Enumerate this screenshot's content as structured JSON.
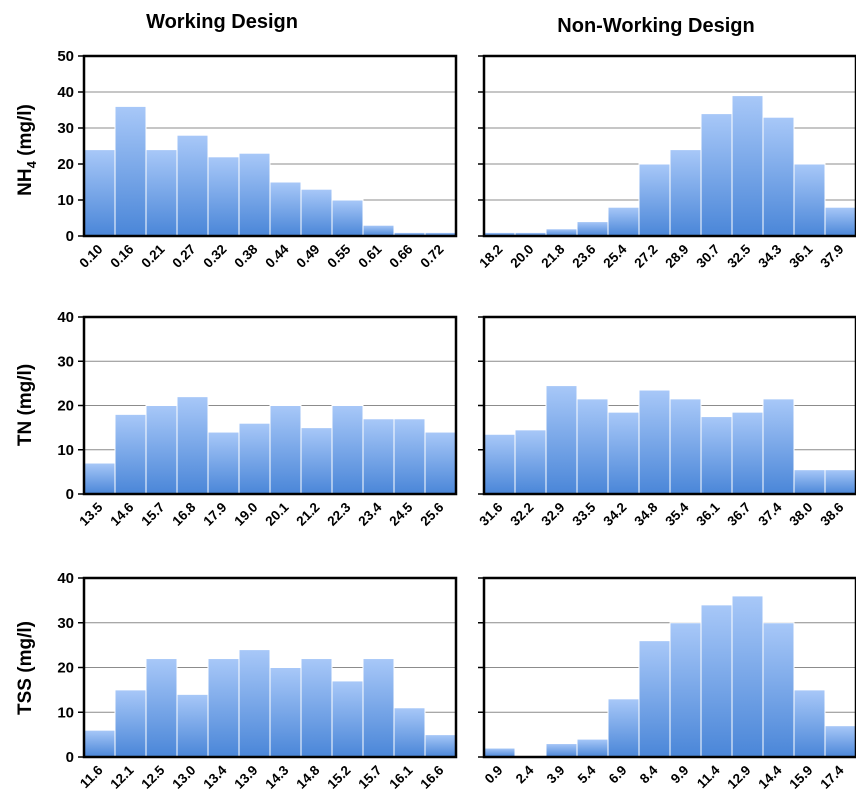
{
  "column_titles": [
    "Working Design",
    "Non-Working Design"
  ],
  "row_ylabels": [
    {
      "main": "NH",
      "sub": "4",
      "tail": " (mg/l)"
    },
    {
      "main": "TN (mg/l)",
      "sub": "",
      "tail": ""
    },
    {
      "main": "TSS (mg/l)",
      "sub": "",
      "tail": ""
    }
  ],
  "colors": {
    "bar_top": "#a8c8f8",
    "bar_bottom": "#4a86d8",
    "grid": "#8c8c8c",
    "frame": "#000000"
  },
  "chart_data": [
    {
      "type": "bar",
      "title": "Working Design",
      "ylabel": "NH4 (mg/l)",
      "ylim": [
        0,
        50
      ],
      "yticks": [
        0,
        10,
        20,
        30,
        40,
        50
      ],
      "grid": true,
      "categories": [
        "0.10",
        "0.16",
        "0.21",
        "0.27",
        "0.32",
        "0.38",
        "0.44",
        "0.49",
        "0.55",
        "0.61",
        "0.66",
        "0.72"
      ],
      "values": [
        24,
        36,
        24,
        28,
        22,
        23,
        15,
        13,
        10,
        3,
        1,
        1
      ]
    },
    {
      "type": "bar",
      "title": "Non-Working Design",
      "ylabel": "NH4 (mg/l)",
      "ylim": [
        0,
        50
      ],
      "yticks": [
        0,
        10,
        20,
        30,
        40,
        50
      ],
      "grid": true,
      "categories": [
        "18.2",
        "20.0",
        "21.8",
        "23.6",
        "25.4",
        "27.2",
        "28.9",
        "30.7",
        "32.5",
        "34.3",
        "36.1",
        "37.9"
      ],
      "values": [
        1,
        1,
        2,
        4,
        8,
        20,
        24,
        34,
        39,
        33,
        20,
        8
      ]
    },
    {
      "type": "bar",
      "title": "Working Design",
      "ylabel": "TN (mg/l)",
      "ylim": [
        0,
        40
      ],
      "yticks": [
        0,
        10,
        20,
        30,
        40
      ],
      "grid": true,
      "categories": [
        "13.5",
        "14.6",
        "15.7",
        "16.8",
        "17.9",
        "19.0",
        "20.1",
        "21.2",
        "22.3",
        "23.4",
        "24.5",
        "25.6"
      ],
      "values": [
        7,
        18,
        20,
        22,
        14,
        16,
        20,
        15,
        20,
        17,
        17,
        14
      ]
    },
    {
      "type": "bar",
      "title": "Non-Working Design",
      "ylabel": "TN (mg/l)",
      "ylim": [
        0,
        40
      ],
      "yticks": [
        0,
        10,
        20,
        30,
        40
      ],
      "grid": true,
      "categories": [
        "31.6",
        "32.2",
        "32.9",
        "33.5",
        "34.2",
        "34.8",
        "35.4",
        "36.1",
        "36.7",
        "37.4",
        "38.0",
        "38.6"
      ],
      "values": [
        13.5,
        14.5,
        24.5,
        21.5,
        18.5,
        23.5,
        21.5,
        17.5,
        18.5,
        21.5,
        5.5,
        5.5
      ]
    },
    {
      "type": "bar",
      "title": "Working Design",
      "ylabel": "TSS (mg/l)",
      "ylim": [
        0,
        40
      ],
      "yticks": [
        0,
        10,
        20,
        30,
        40
      ],
      "grid": true,
      "categories": [
        "11.6",
        "12.1",
        "12.5",
        "13.0",
        "13.4",
        "13.9",
        "14.3",
        "14.8",
        "15.2",
        "15.7",
        "16.1",
        "16.6"
      ],
      "values": [
        6,
        15,
        22,
        14,
        22,
        24,
        20,
        22,
        17,
        22,
        11,
        5
      ]
    },
    {
      "type": "bar",
      "title": "Non-Working Design",
      "ylabel": "TSS (mg/l)",
      "ylim": [
        0,
        40
      ],
      "yticks": [
        0,
        10,
        20,
        30,
        40
      ],
      "grid": true,
      "categories": [
        "0.9",
        "2.4",
        "3.9",
        "5.4",
        "6.9",
        "8.4",
        "9.9",
        "11.4",
        "12.9",
        "14.4",
        "15.9",
        "17.4"
      ],
      "values": [
        2,
        0,
        3,
        4,
        13,
        26,
        30,
        34,
        36,
        30,
        15,
        7
      ]
    }
  ]
}
